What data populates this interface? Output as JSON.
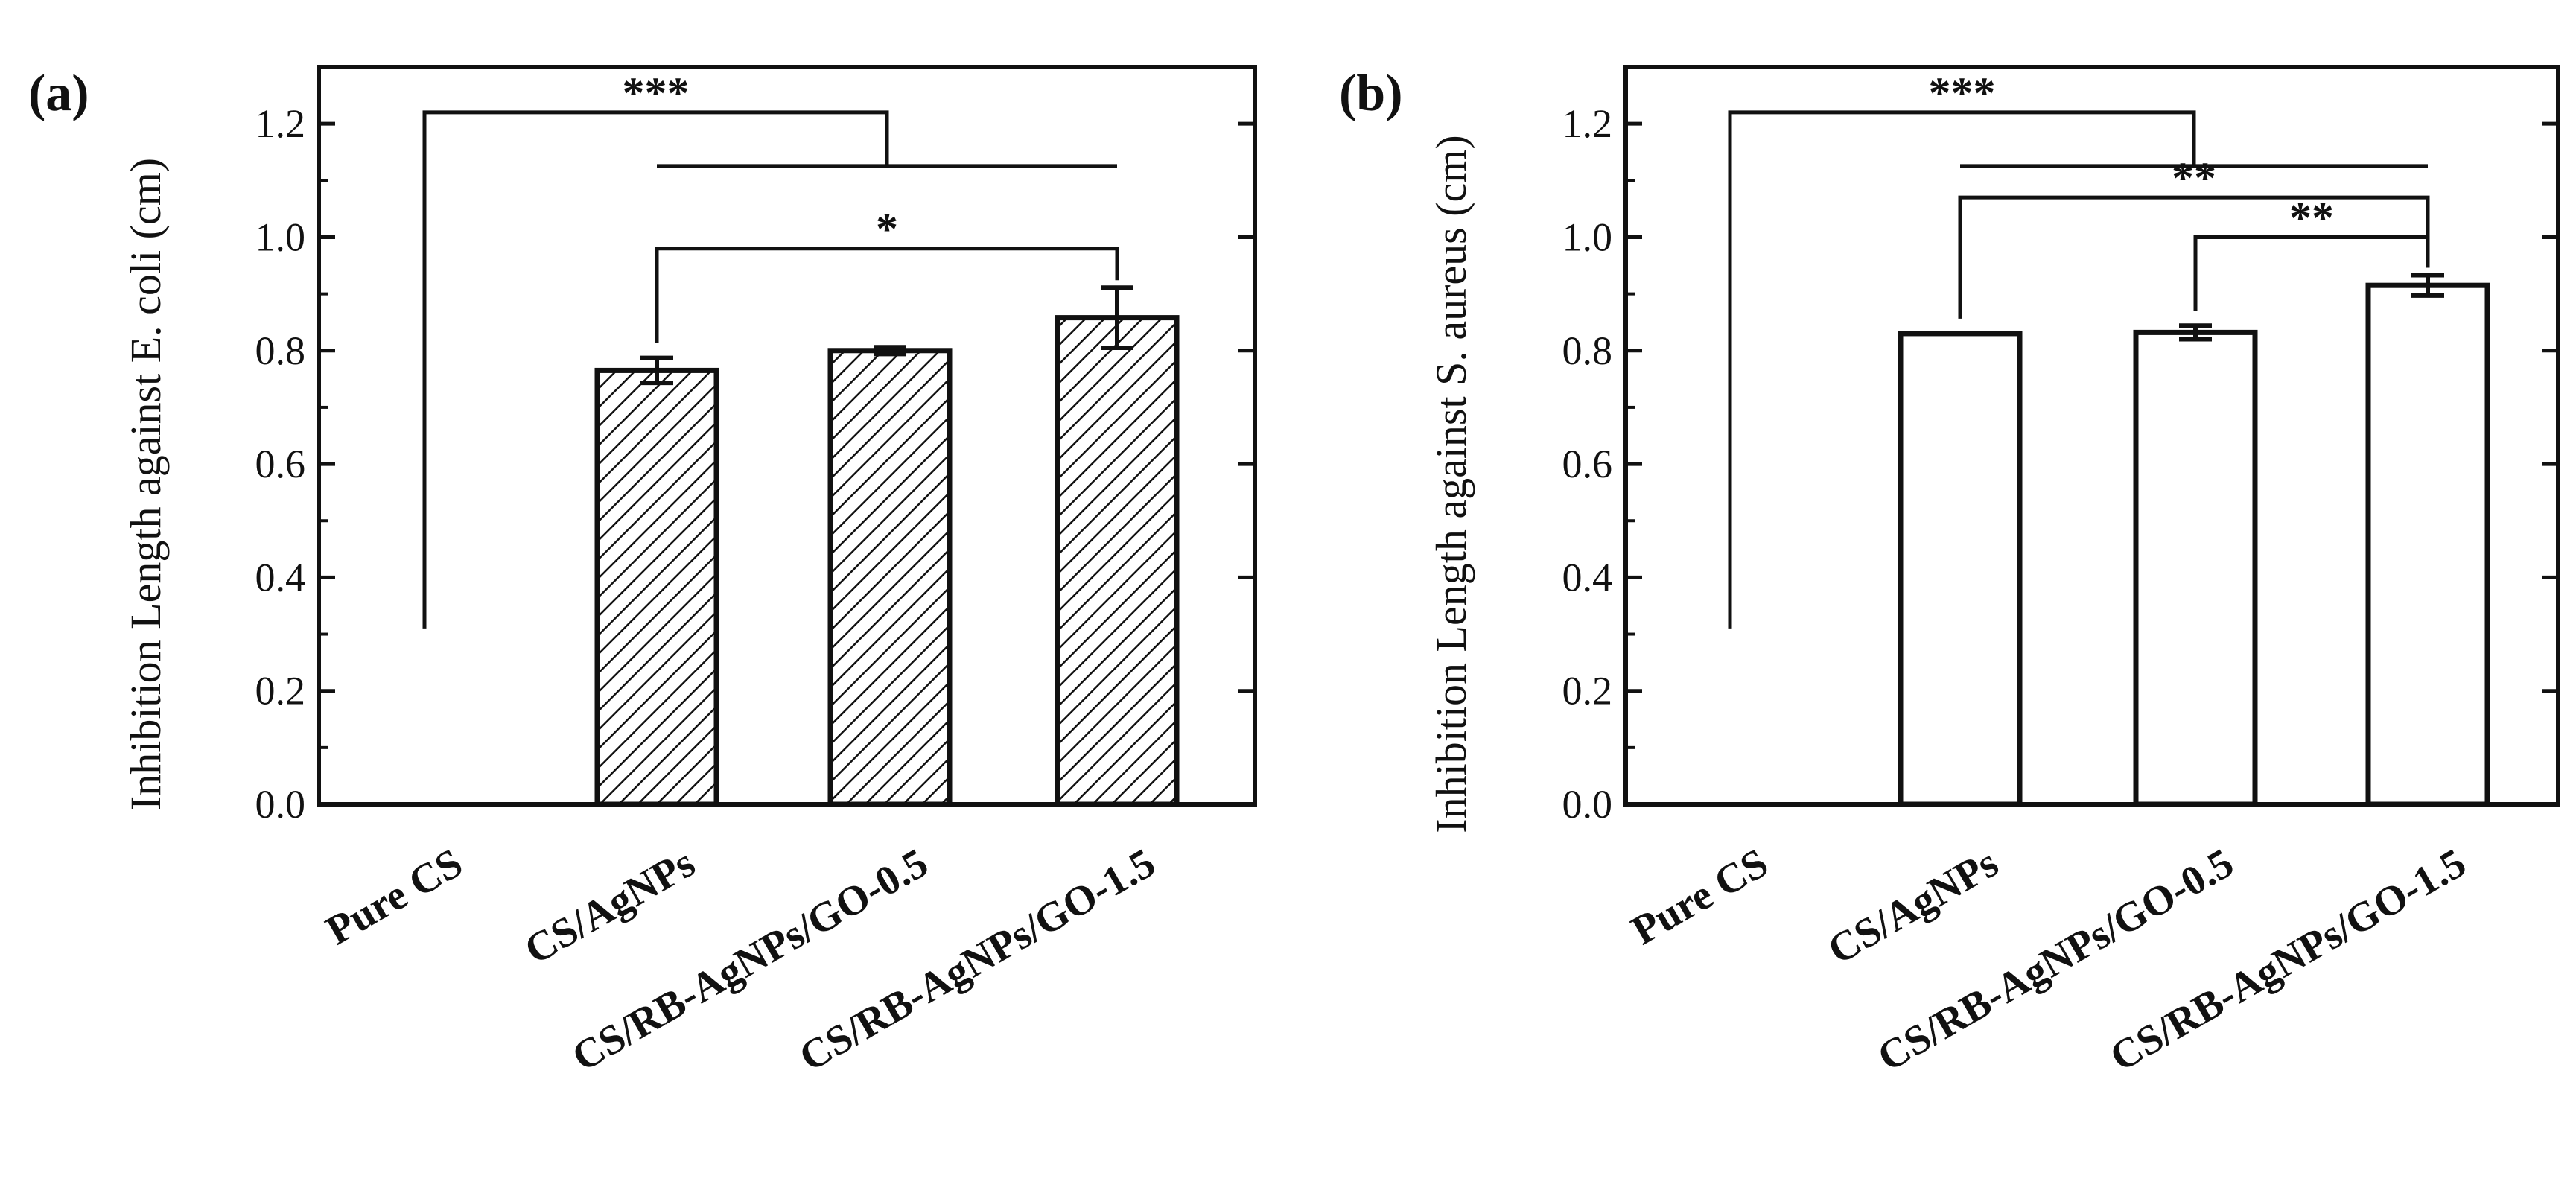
{
  "chart_data": [
    {
      "panel": "(a)",
      "type": "bar",
      "pattern": "hatched",
      "title": "",
      "xlabel": "",
      "ylabel": "Inhibition Length against E. coli (cm)",
      "ylim": [
        0.0,
        1.3
      ],
      "yticks": [
        "0.0",
        "0.2",
        "0.4",
        "0.6",
        "0.8",
        "1.0",
        "1.2"
      ],
      "categories": [
        "Pure CS",
        "CS/AgNPs",
        "CS/RB-AgNPs/GO-0.5",
        "CS/RB-AgNPs/GO-1.5"
      ],
      "values": [
        0.0,
        0.765,
        0.8,
        0.858
      ],
      "errors": [
        0.0,
        0.022,
        0.006,
        0.053
      ],
      "significance": [
        {
          "label": "***",
          "from": [
            0
          ],
          "to": [
            1,
            2,
            3
          ],
          "level": 1.22
        },
        {
          "label": "*",
          "from": [
            1
          ],
          "to": [
            3
          ],
          "level": 0.98
        }
      ]
    },
    {
      "panel": "(b)",
      "type": "bar",
      "pattern": "open",
      "title": "",
      "xlabel": "",
      "ylabel": "Inhibition Length against S. aureus (cm)",
      "ylim": [
        0.0,
        1.3
      ],
      "yticks": [
        "0.0",
        "0.2",
        "0.4",
        "0.6",
        "0.8",
        "1.0",
        "1.2"
      ],
      "categories": [
        "Pure CS",
        "CS/AgNPs",
        "CS/RB-AgNPs/GO-0.5",
        "CS/RB-AgNPs/GO-1.5"
      ],
      "values": [
        0.0,
        0.83,
        0.832,
        0.915
      ],
      "errors": [
        0.0,
        0.0,
        0.012,
        0.018
      ],
      "significance": [
        {
          "label": "***",
          "from": [
            0
          ],
          "to": [
            1,
            2,
            3
          ],
          "level": 1.22
        },
        {
          "label": "**",
          "from": [
            1
          ],
          "to": [
            3
          ],
          "level": 1.07
        },
        {
          "label": "**",
          "from": [
            2
          ],
          "to": [
            3
          ],
          "level": 1.0
        }
      ]
    }
  ]
}
